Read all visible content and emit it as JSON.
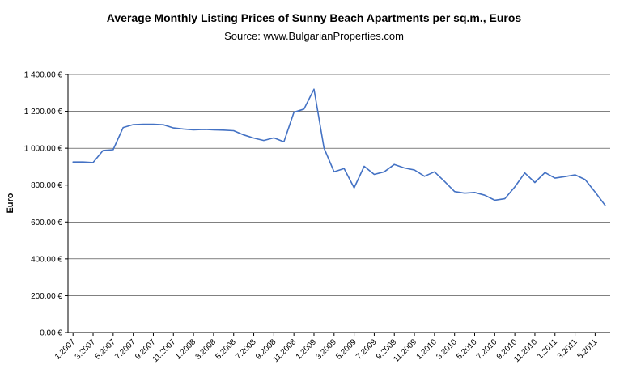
{
  "chart_data": {
    "type": "line",
    "title": "Average Monthly Listing Prices of Sunny Beach Apartments per sq.m., Euros",
    "subtitle": "Source: www.BulgarianProperties.com",
    "xlabel": "",
    "ylabel": "Euro",
    "ylim": [
      0,
      1400
    ],
    "grid": true,
    "legend": "none",
    "line_color": "#4472c4",
    "grid_color": "#000000",
    "x_tick_step": 2,
    "y_ticks": [
      {
        "value": 0,
        "label": "0.00 €"
      },
      {
        "value": 200,
        "label": "200.00 €"
      },
      {
        "value": 400,
        "label": "400.00 €"
      },
      {
        "value": 600,
        "label": "600.00 €"
      },
      {
        "value": 800,
        "label": "800.00 €"
      },
      {
        "value": 1000,
        "label": "1 000.00 €"
      },
      {
        "value": 1200,
        "label": "1 200.00 €"
      },
      {
        "value": 1400,
        "label": "1 400.00 €"
      }
    ],
    "categories": [
      "1.2007",
      "2.2007",
      "3.2007",
      "4.2007",
      "5.2007",
      "6.2007",
      "7.2007",
      "8.2007",
      "9.2007",
      "10.2007",
      "11.2007",
      "12.2007",
      "1.2008",
      "2.2008",
      "3.2008",
      "4.2008",
      "5.2008",
      "6.2008",
      "7.2008",
      "8.2008",
      "9.2008",
      "10.2008",
      "11.2008",
      "12.2008",
      "1.2009",
      "2.2009",
      "3.2009",
      "4.2009",
      "5.2009",
      "6.2009",
      "7.2009",
      "8.2009",
      "9.2009",
      "10.2009",
      "11.2009",
      "12.2009",
      "1.2010",
      "2.2010",
      "3.2010",
      "4.2010",
      "5.2010",
      "6.2010",
      "7.2010",
      "8.2010",
      "9.2010",
      "10.2010",
      "11.2010",
      "12.2010",
      "1.2011",
      "2.2011",
      "3.2011",
      "4.2011",
      "5.2011",
      "6.2011"
    ],
    "values": [
      925,
      925,
      922,
      988,
      992,
      1112,
      1128,
      1130,
      1130,
      1127,
      1110,
      1104,
      1100,
      1102,
      1100,
      1098,
      1095,
      1072,
      1055,
      1042,
      1056,
      1035,
      1195,
      1212,
      1320,
      1000,
      872,
      890,
      785,
      902,
      858,
      872,
      912,
      893,
      882,
      848,
      872,
      820,
      765,
      756,
      760,
      745,
      718,
      726,
      790,
      866,
      814,
      868,
      838,
      846,
      856,
      830,
      762,
      690
    ]
  }
}
